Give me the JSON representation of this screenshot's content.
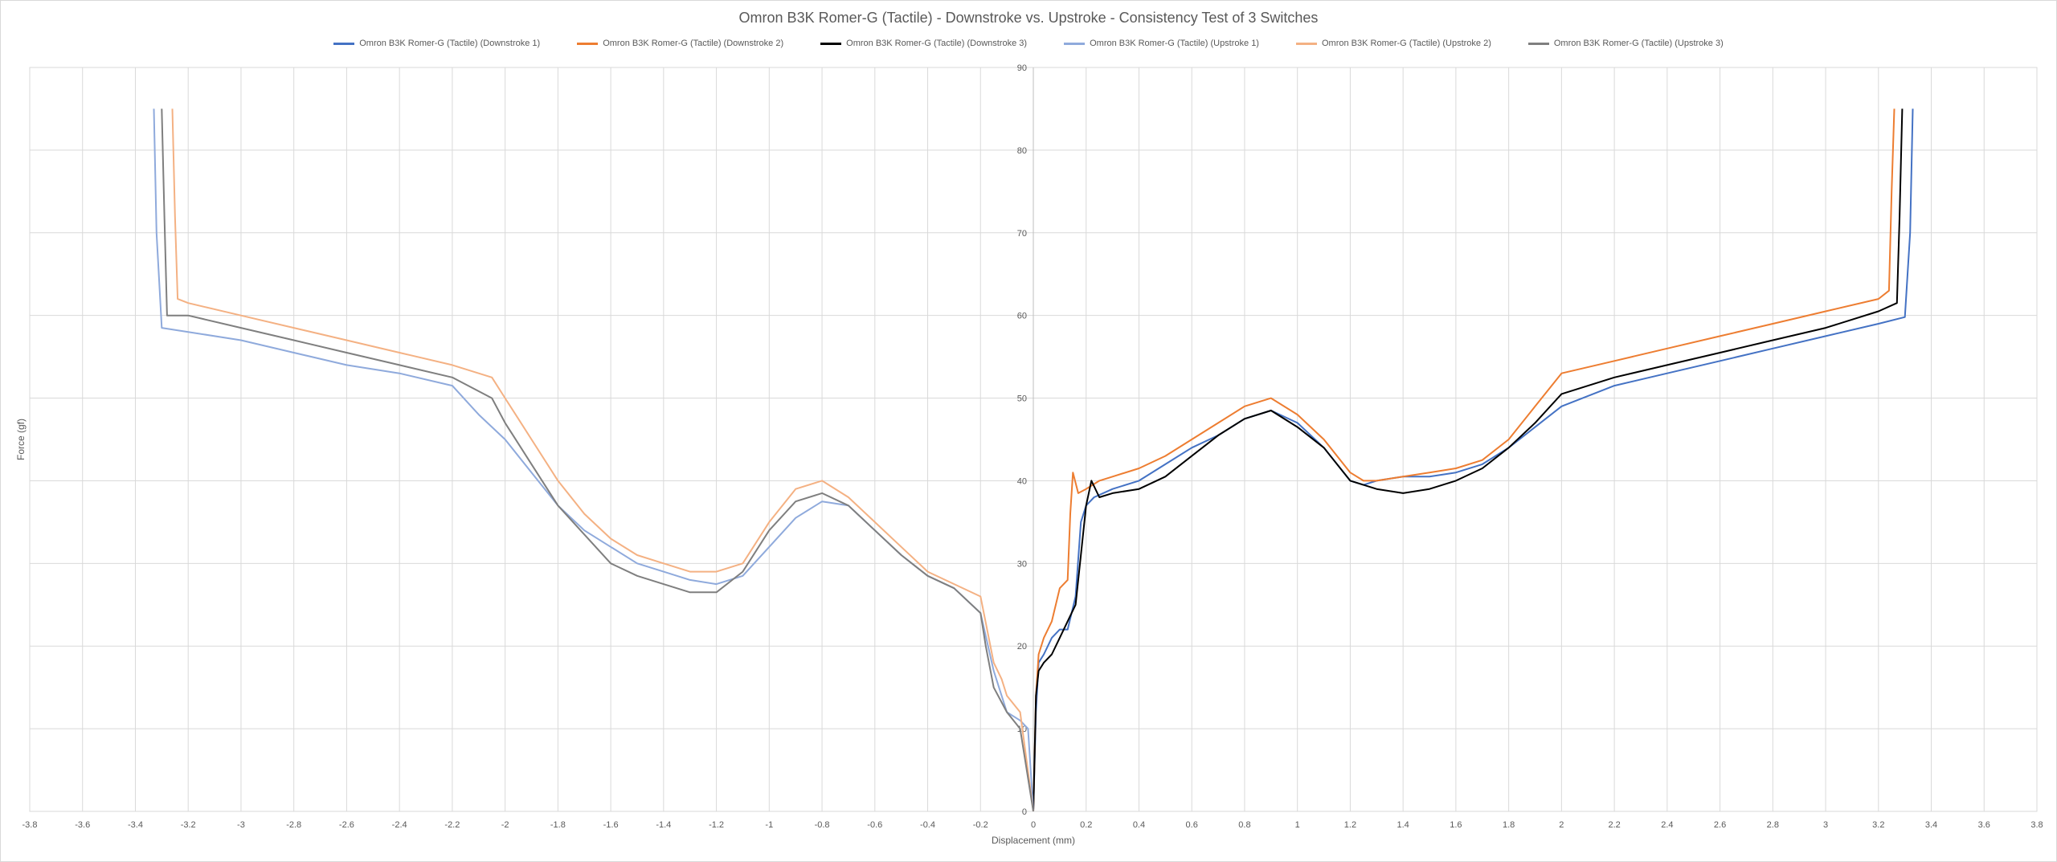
{
  "chart_data": {
    "type": "line",
    "title": "Omron B3K Romer-G (Tactile) - Downstroke vs. Upstroke - Consistency Test of 3 Switches",
    "xlabel": "Displacement (mm)",
    "ylabel": "Force (gf)",
    "xlim": [
      -3.8,
      3.8
    ],
    "ylim": [
      0,
      90
    ],
    "x_ticks": [
      "-3.8",
      "-3.6",
      "-3.4",
      "-3.2",
      "-3",
      "-2.8",
      "-2.6",
      "-2.4",
      "-2.2",
      "-2",
      "-1.8",
      "-1.6",
      "-1.4",
      "-1.2",
      "-1",
      "-0.8",
      "-0.6",
      "-0.4",
      "-0.2",
      "0",
      "0.2",
      "0.4",
      "0.6",
      "0.8",
      "1",
      "1.2",
      "1.4",
      "1.6",
      "1.8",
      "2",
      "2.2",
      "2.4",
      "2.6",
      "2.8",
      "3",
      "3.2",
      "3.4",
      "3.6",
      "3.8"
    ],
    "y_ticks": [
      "0",
      "10",
      "20",
      "30",
      "40",
      "50",
      "60",
      "70",
      "80",
      "90"
    ],
    "grid": true,
    "legend_position": "top",
    "series": [
      {
        "name": "Omron B3K Romer-G (Tactile) (Downstroke 1)",
        "color": "#4472C4",
        "x": [
          0,
          0.01,
          0.02,
          0.04,
          0.07,
          0.1,
          0.13,
          0.16,
          0.18,
          0.2,
          0.23,
          0.3,
          0.4,
          0.5,
          0.6,
          0.7,
          0.8,
          0.9,
          1.0,
          1.1,
          1.2,
          1.25,
          1.3,
          1.4,
          1.5,
          1.6,
          1.7,
          1.8,
          1.9,
          2.0,
          2.2,
          2.4,
          2.6,
          2.8,
          3.0,
          3.2,
          3.3,
          3.32,
          3.33
        ],
        "y": [
          0,
          12,
          18,
          19,
          21,
          22,
          22,
          26,
          35,
          37,
          38,
          39,
          40,
          42,
          44,
          45.5,
          47.5,
          48.5,
          47,
          44,
          40,
          39.5,
          40,
          40.5,
          40.5,
          41,
          42,
          44,
          46.5,
          49,
          51.5,
          53,
          54.5,
          56,
          57.5,
          59,
          59.8,
          70,
          85
        ]
      },
      {
        "name": "Omron B3K Romer-G (Tactile) (Downstroke 2)",
        "color": "#ED7D31",
        "x": [
          0,
          0.01,
          0.02,
          0.04,
          0.07,
          0.1,
          0.13,
          0.14,
          0.15,
          0.17,
          0.2,
          0.25,
          0.3,
          0.4,
          0.5,
          0.6,
          0.7,
          0.8,
          0.9,
          1.0,
          1.1,
          1.2,
          1.25,
          1.3,
          1.4,
          1.5,
          1.6,
          1.7,
          1.8,
          1.9,
          2.0,
          2.2,
          2.4,
          2.6,
          2.8,
          3.0,
          3.2,
          3.24,
          3.25,
          3.26
        ],
        "y": [
          0,
          14,
          19,
          21,
          23,
          27,
          28,
          36,
          41,
          38.5,
          39,
          40,
          40.5,
          41.5,
          43,
          45,
          47,
          49,
          50,
          48,
          45,
          41,
          40,
          40,
          40.5,
          41,
          41.5,
          42.5,
          45,
          49,
          53,
          54.5,
          56,
          57.5,
          59,
          60.5,
          62,
          63,
          75,
          85
        ]
      },
      {
        "name": "Omron B3K Romer-G (Tactile) (Downstroke 3)",
        "color": "#000000",
        "x": [
          0,
          0.01,
          0.02,
          0.04,
          0.07,
          0.1,
          0.13,
          0.16,
          0.18,
          0.2,
          0.22,
          0.25,
          0.3,
          0.4,
          0.5,
          0.6,
          0.7,
          0.8,
          0.9,
          1.0,
          1.1,
          1.2,
          1.3,
          1.4,
          1.5,
          1.6,
          1.7,
          1.8,
          1.9,
          2.0,
          2.2,
          2.4,
          2.6,
          2.8,
          3.0,
          3.2,
          3.27,
          3.28,
          3.29
        ],
        "y": [
          0,
          14,
          17,
          18,
          19,
          21,
          23,
          25,
          31,
          37,
          40,
          38,
          38.5,
          39,
          40.5,
          43,
          45.5,
          47.5,
          48.5,
          46.5,
          44,
          40,
          39,
          38.5,
          39,
          40,
          41.5,
          44,
          47,
          50.5,
          52.5,
          54,
          55.5,
          57,
          58.5,
          60.5,
          61.5,
          72,
          85
        ]
      },
      {
        "name": "Omron B3K Romer-G (Tactile) (Upstroke 1)",
        "color": "#8FAADC",
        "x": [
          -3.33,
          -3.32,
          -3.3,
          -3.2,
          -3.0,
          -2.8,
          -2.6,
          -2.4,
          -2.2,
          -2.1,
          -2.0,
          -1.9,
          -1.8,
          -1.7,
          -1.6,
          -1.5,
          -1.4,
          -1.3,
          -1.2,
          -1.1,
          -1.0,
          -0.9,
          -0.8,
          -0.7,
          -0.6,
          -0.5,
          -0.4,
          -0.3,
          -0.2,
          -0.15,
          -0.1,
          -0.05,
          -0.02,
          0
        ],
        "y": [
          85,
          70,
          58.5,
          58,
          57,
          55.5,
          54,
          53,
          51.5,
          48,
          45,
          41,
          37,
          34,
          32,
          30,
          29,
          28,
          27.5,
          28.5,
          32,
          35.5,
          37.5,
          37,
          34,
          31,
          28.5,
          27,
          24,
          17,
          12,
          11,
          10,
          0
        ]
      },
      {
        "name": "Omron B3K Romer-G (Tactile) (Upstroke 2)",
        "color": "#F4B183",
        "x": [
          -3.26,
          -3.25,
          -3.24,
          -3.2,
          -3.0,
          -2.8,
          -2.6,
          -2.4,
          -2.2,
          -2.05,
          -2.0,
          -1.95,
          -1.9,
          -1.8,
          -1.7,
          -1.6,
          -1.5,
          -1.4,
          -1.3,
          -1.2,
          -1.1,
          -1.0,
          -0.9,
          -0.8,
          -0.7,
          -0.6,
          -0.5,
          -0.4,
          -0.2,
          -0.15,
          -0.12,
          -0.1,
          -0.05,
          0
        ],
        "y": [
          85,
          72,
          62,
          61.5,
          60,
          58.5,
          57,
          55.5,
          54,
          52.5,
          50,
          47.5,
          45,
          40,
          36,
          33,
          31,
          30,
          29,
          29,
          30,
          35,
          39,
          40,
          38,
          35,
          32,
          29,
          26,
          18,
          16,
          14,
          12,
          0
        ]
      },
      {
        "name": "Omron B3K Romer-G (Tactile) (Upstroke 3)",
        "color": "#7F7F7F",
        "x": [
          -3.3,
          -3.29,
          -3.28,
          -3.2,
          -3.0,
          -2.8,
          -2.6,
          -2.4,
          -2.2,
          -2.05,
          -2.0,
          -1.9,
          -1.8,
          -1.7,
          -1.6,
          -1.5,
          -1.4,
          -1.3,
          -1.2,
          -1.1,
          -1.0,
          -0.9,
          -0.8,
          -0.7,
          -0.6,
          -0.5,
          -0.4,
          -0.3,
          -0.2,
          -0.18,
          -0.15,
          -0.1,
          -0.05,
          0
        ],
        "y": [
          85,
          72,
          60,
          60,
          58.5,
          57,
          55.5,
          54,
          52.5,
          50,
          47,
          42,
          37,
          33.5,
          30,
          28.5,
          27.5,
          26.5,
          26.5,
          29,
          34,
          37.5,
          38.5,
          37,
          34,
          31,
          28.5,
          27,
          24,
          20,
          15,
          12,
          10,
          0
        ]
      }
    ]
  }
}
